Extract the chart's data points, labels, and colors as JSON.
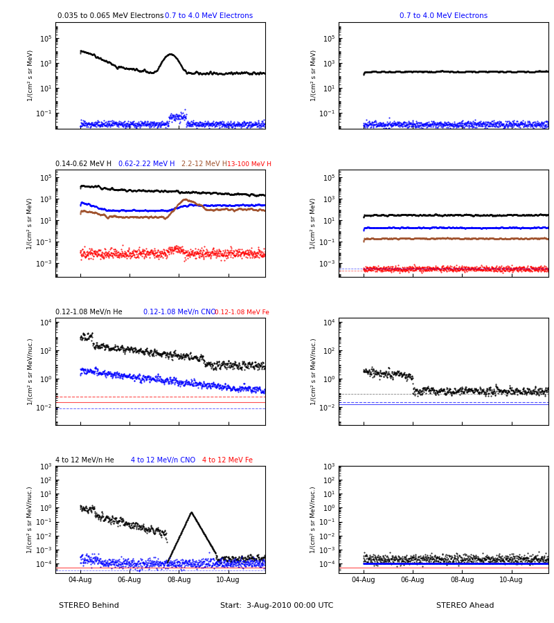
{
  "title_r1L_black": "0.035 to 0.065 MeV Electrons",
  "title_r1L_blue": "0.7 to 4.0 MeV Electrons",
  "title_r1R": "0.7 to 4.0 MeV Electrons",
  "row2_labels": [
    "0.14-0.62 MeV H",
    "0.62-2.22 MeV H",
    "2.2-12 MeV H",
    "13-100 MeV H"
  ],
  "row2_colors": [
    "black",
    "blue",
    "#a0522d",
    "red"
  ],
  "row3_labels": [
    "0.12-1.08 MeV/n He",
    "0.12-1.08 MeV/n CNO",
    "0.12-1.08 MeV Fe"
  ],
  "row3_colors": [
    "black",
    "blue",
    "red"
  ],
  "row4_labels": [
    "4 to 12 MeV/n He",
    "4 to 12 MeV/n CNO",
    "4 to 12 MeV Fe"
  ],
  "row4_colors": [
    "black",
    "blue",
    "red"
  ],
  "ylabel_electrons": "1/(cm² s sr MeV)",
  "ylabel_protons": "1/(cm² s sr MeV)",
  "ylabel_heavy": "1/(cm² s sr MeV/nuc.)",
  "xlabel_left": "STEREO Behind",
  "xlabel_center": "Start:  3-Aug-2010 00:00 UTC",
  "xlabel_right": "STEREO Ahead",
  "xtick_labels": [
    "04-Aug",
    "06-Aug",
    "08-Aug",
    "10-Aug"
  ],
  "bg_color": "white",
  "seed": 42
}
